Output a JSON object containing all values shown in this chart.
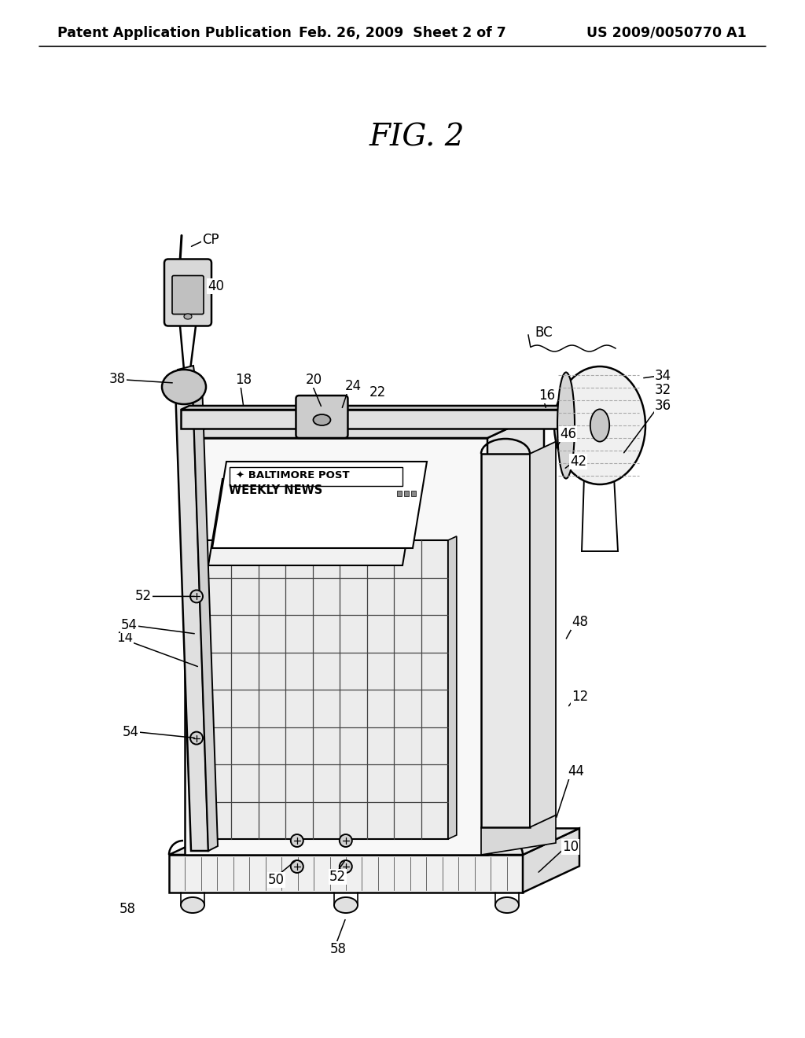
{
  "bg_color": "#ffffff",
  "header_left": "Patent Application Publication",
  "header_mid": "Feb. 26, 2009  Sheet 2 of 7",
  "header_right": "US 2009/0050770 A1",
  "fig_label": "FIG. 2",
  "line_color": "#000000",
  "lw_main": 1.8,
  "lw_thin": 1.0,
  "lw_label": 1.1
}
